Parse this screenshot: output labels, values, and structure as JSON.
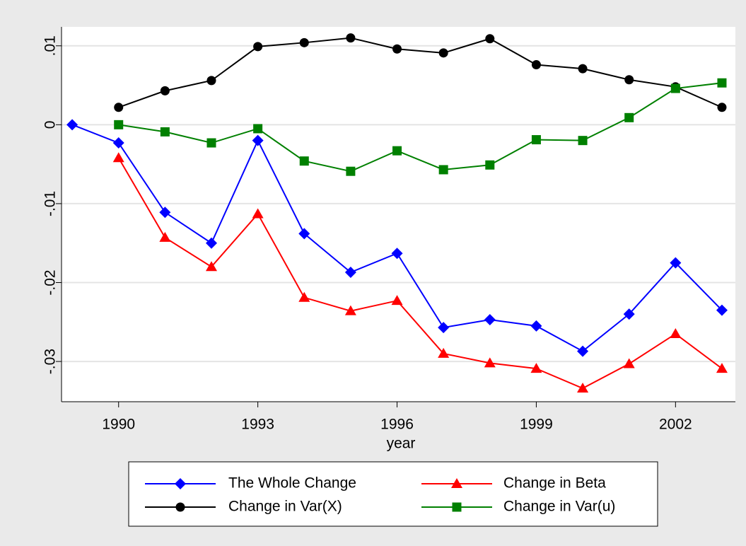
{
  "chart_data": {
    "type": "line",
    "x": [
      1989,
      1990,
      1991,
      1992,
      1993,
      1994,
      1995,
      1996,
      1997,
      1998,
      1999,
      2000,
      2001,
      2002,
      2003
    ],
    "xlabel": "year",
    "xlim": [
      1988.77,
      2003.29
    ],
    "xticks": [
      1990,
      1993,
      1996,
      1999,
      2002
    ],
    "ylim": [
      -0.0351,
      0.0124
    ],
    "yticks": [
      {
        "value": 0.01,
        "label": ".01"
      },
      0,
      {
        "value": -0.01,
        "label": "-.01"
      },
      {
        "value": -0.02,
        "label": "-.02"
      },
      {
        "value": -0.03,
        "label": "-.03"
      }
    ],
    "grid": true,
    "series": [
      {
        "name": "The Whole Change",
        "color": "#0000ff",
        "marker": "diamond",
        "values": [
          0,
          -0.0023,
          -0.0111,
          -0.015,
          -0.002,
          -0.0138,
          -0.0187,
          -0.0163,
          -0.0257,
          -0.0247,
          -0.0255,
          -0.0287,
          -0.024,
          -0.0175,
          -0.0235
        ]
      },
      {
        "name": "Change in Beta",
        "color": "#ff0000",
        "marker": "triangle",
        "values": [
          null,
          -0.0042,
          -0.0143,
          -0.018,
          -0.0113,
          -0.0219,
          -0.0236,
          -0.0223,
          -0.029,
          -0.0302,
          -0.0309,
          -0.0334,
          -0.0303,
          -0.0265,
          -0.0309
        ]
      },
      {
        "name": "Change in Var(X)",
        "color": "#000000",
        "marker": "circle",
        "values": [
          null,
          0.0022,
          0.0043,
          0.0056,
          0.0099,
          0.0104,
          0.011,
          0.0096,
          0.0091,
          0.0109,
          0.0076,
          0.0071,
          0.0057,
          0.0048,
          0.0022
        ]
      },
      {
        "name": "Change in Var(u)",
        "color": "#008000",
        "marker": "square",
        "values": [
          null,
          0,
          -0.0009,
          -0.0023,
          -0.0005,
          -0.0046,
          -0.0059,
          -0.0033,
          -0.0057,
          -0.0051,
          -0.0019,
          -0.002,
          0.0009,
          0.0046,
          0.0053
        ]
      }
    ]
  }
}
